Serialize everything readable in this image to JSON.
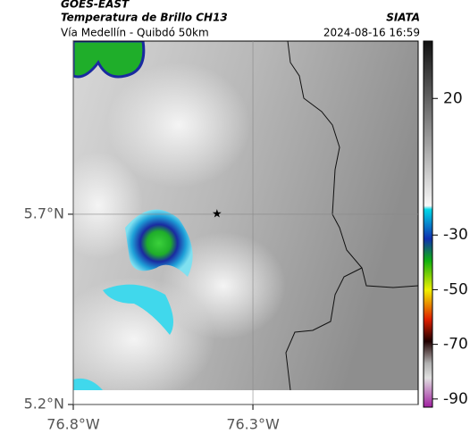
{
  "header": {
    "source": "GOES-EAST",
    "title": "Temperatura de Brillo CH13",
    "subtitle": "Vía Medellín - Quibdó 50km",
    "brand": "SIATA",
    "datetime": "2024-08-16 16:59"
  },
  "map": {
    "latlim": [
      5.2,
      6.155
    ],
    "lonlim": [
      -76.8,
      -75.84
    ],
    "lat_ticks": [
      {
        "value": 5.7,
        "label": "5.7°N"
      },
      {
        "value": 5.2,
        "label": "5.2°N"
      }
    ],
    "lon_ticks": [
      {
        "value": -76.8,
        "label": "76.8°W"
      },
      {
        "value": -76.3,
        "label": "76.3°W"
      }
    ],
    "marker": {
      "lat": 5.7,
      "lon": -76.4
    }
  },
  "colorbar": {
    "clim": [
      -93,
      41
    ],
    "ticks": [
      20,
      -30,
      -50,
      -70,
      -90
    ]
  }
}
